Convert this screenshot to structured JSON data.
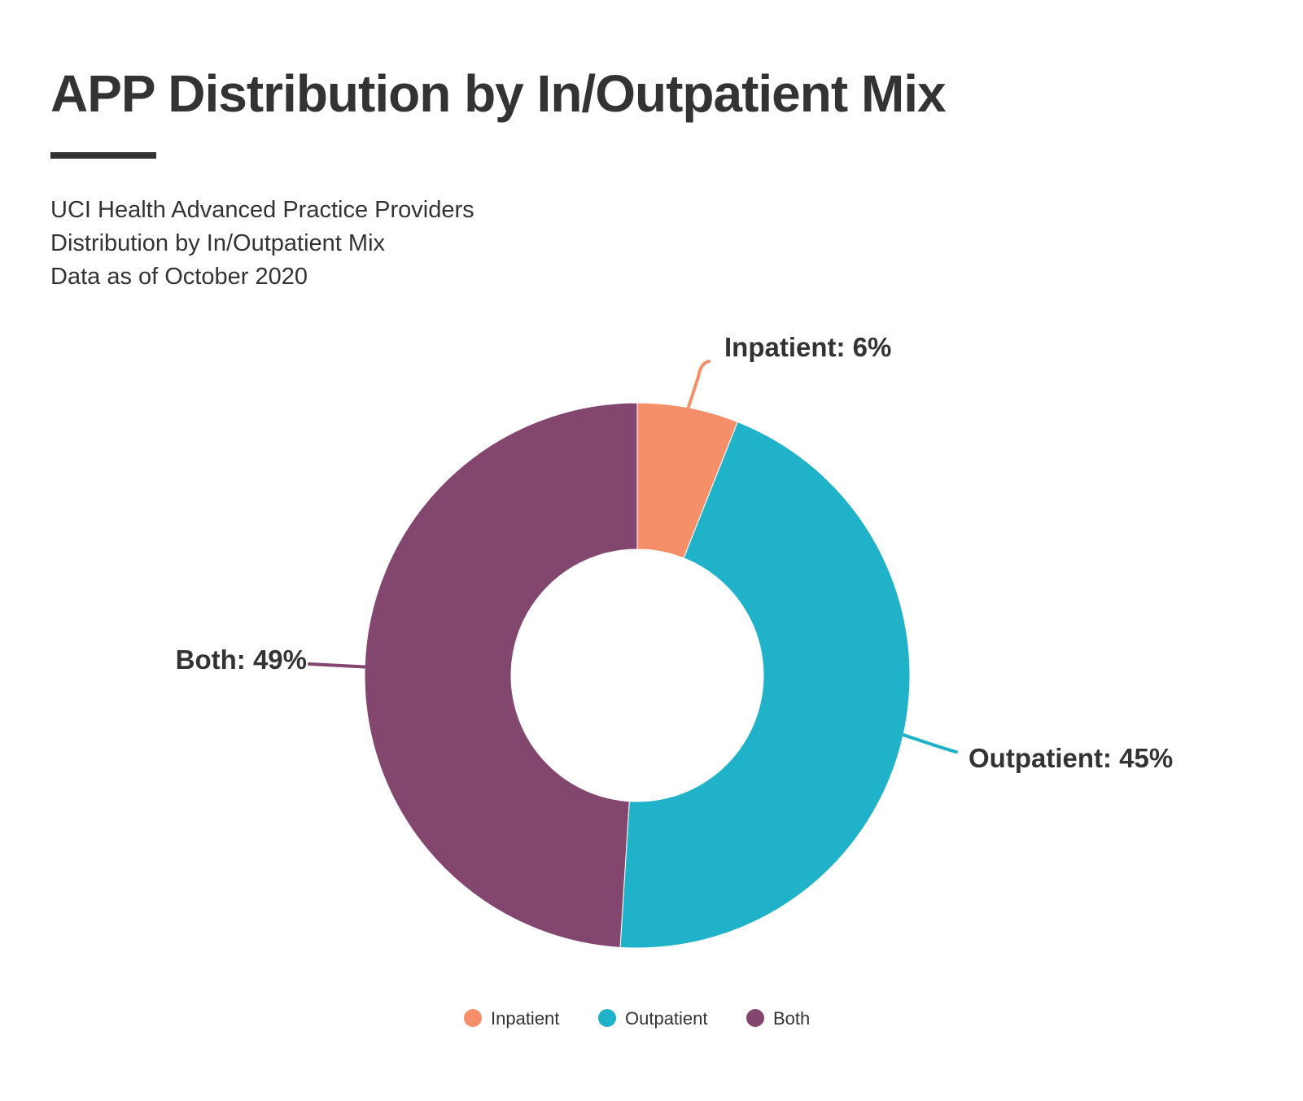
{
  "header": {
    "title": "APP Distribution by In/Outpatient Mix",
    "subtitle_lines": [
      "UCI Health Advanced Practice Providers",
      "Distribution by In/Outpatient Mix",
      "Data as of October 2020"
    ]
  },
  "chart_data": {
    "type": "pie",
    "donut": true,
    "title": "APP Distribution by In/Outpatient Mix",
    "slices": [
      {
        "name": "Inpatient",
        "value": 6,
        "label": "Inpatient: 6%",
        "color": "#f58f69"
      },
      {
        "name": "Outpatient",
        "value": 45,
        "label": "Outpatient: 45%",
        "color": "#1fb2c9"
      },
      {
        "name": "Both",
        "value": 49,
        "label": "Both: 49%",
        "color": "#83466f"
      }
    ],
    "legend": {
      "position": "bottom",
      "items": [
        "Inpatient",
        "Outpatient",
        "Both"
      ]
    }
  }
}
